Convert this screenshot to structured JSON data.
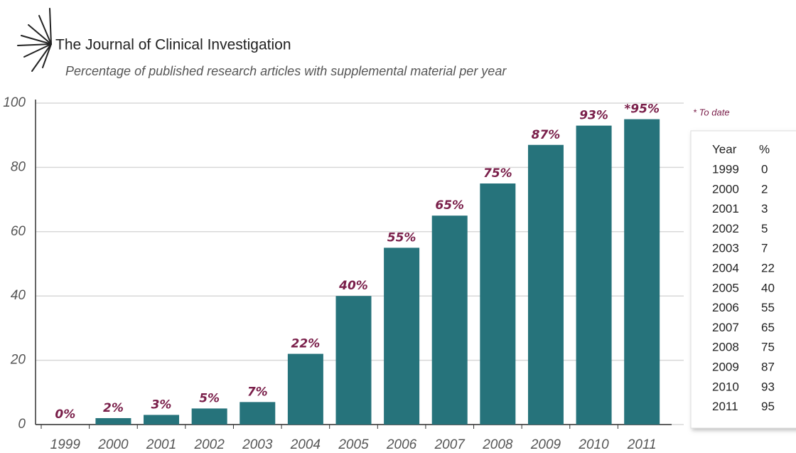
{
  "chart_data": {
    "type": "bar",
    "title": "The Journal of Clinical Investigation",
    "subtitle": "Percentage of published research articles with supplemental material per year",
    "note": "* To date",
    "categories": [
      "1999",
      "2000",
      "2001",
      "2002",
      "2003",
      "2004",
      "2005",
      "2006",
      "2007",
      "2008",
      "2009",
      "2010",
      "2011"
    ],
    "values": [
      0,
      2,
      3,
      5,
      7,
      22,
      40,
      55,
      65,
      75,
      87,
      93,
      95
    ],
    "value_labels": [
      "0%",
      "2%",
      "3%",
      "5%",
      "7%",
      "22%",
      "40%",
      "55%",
      "65%",
      "75%",
      "87%",
      "93%",
      "*95%"
    ],
    "color": "#26737b",
    "ylim": [
      0,
      100
    ],
    "yticks": [
      0,
      20,
      40,
      60,
      80,
      100
    ],
    "grid": true,
    "table_header": [
      "Year",
      "%"
    ]
  }
}
